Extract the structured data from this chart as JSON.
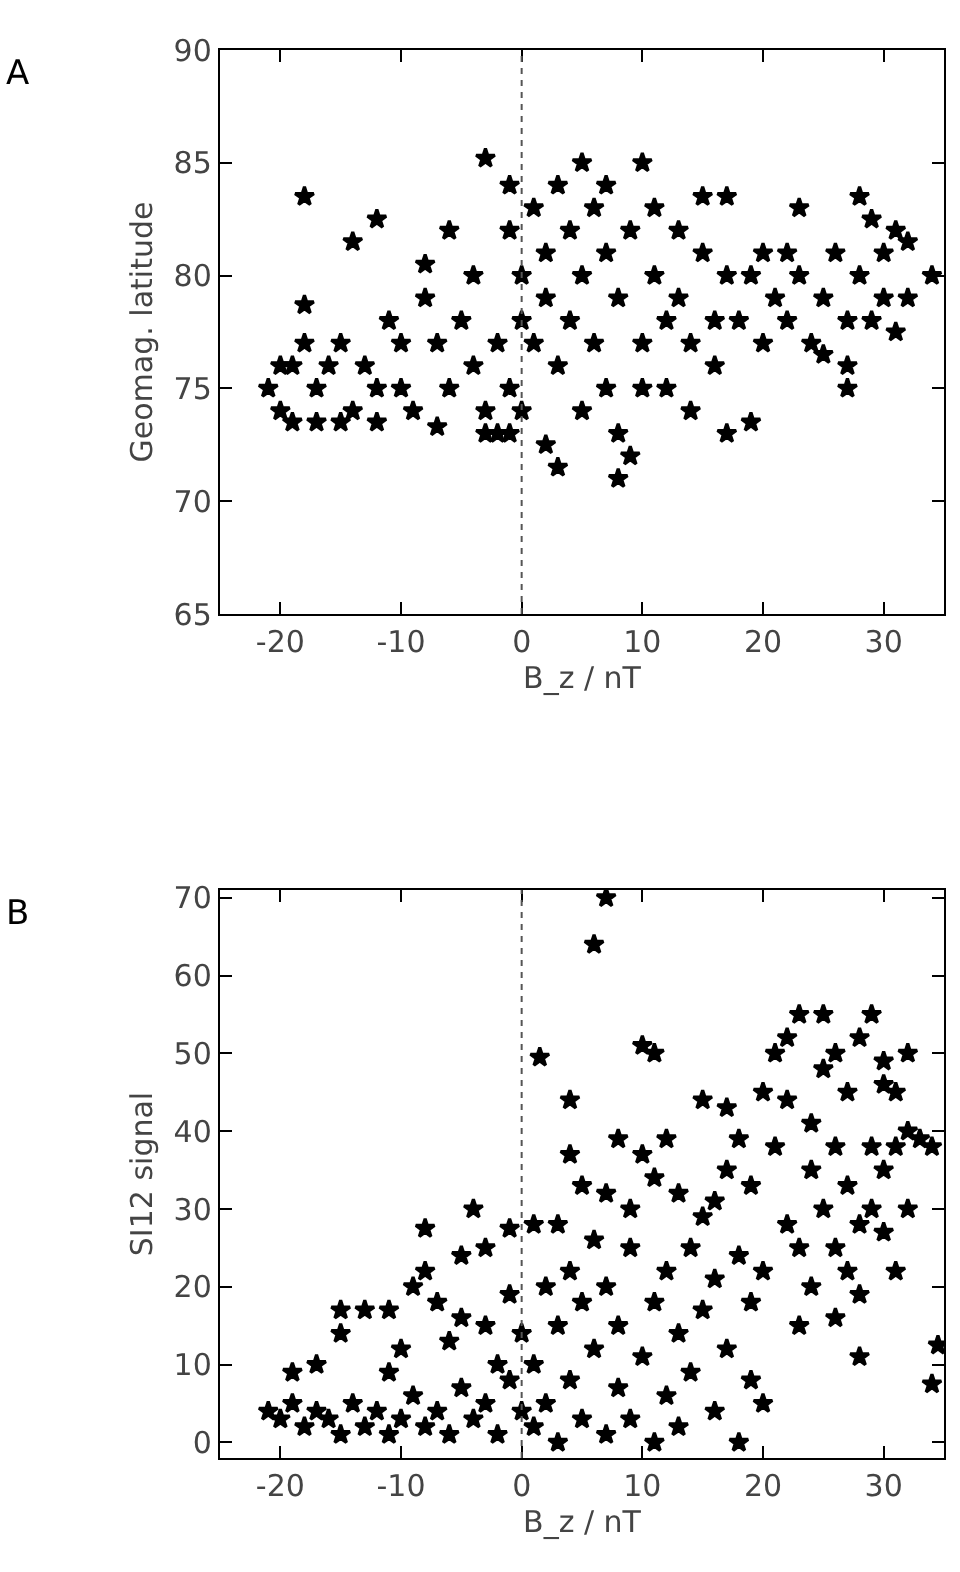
{
  "chart_data": [
    {
      "type": "scatter",
      "xlabel": "B_z / nT",
      "ylabel": "Geomag. latitude",
      "annotations": [
        "A"
      ],
      "marker": "star",
      "xlim": [
        -25,
        35
      ],
      "xticks": [
        -20,
        -10,
        0,
        10,
        20,
        30
      ],
      "ylim": [
        65,
        90
      ],
      "yticks": [
        65,
        70,
        75,
        80,
        85,
        90
      ],
      "ref_lines": [
        {
          "axis": "x",
          "value": 0,
          "line_style": "dotted"
        }
      ],
      "series": [
        {
          "color": "#000000",
          "x": [
            -21,
            -20,
            -19,
            -19,
            -18,
            -17,
            -17,
            -16,
            -15,
            -14,
            -13,
            -12,
            -12,
            -11,
            -10,
            -9,
            -8,
            -7,
            -6,
            -5,
            -4,
            -3,
            -2,
            -1,
            -18,
            -14,
            -12,
            -18,
            -8,
            -6,
            -7,
            -3,
            -3,
            -1,
            2,
            3,
            -1,
            -1,
            0,
            0,
            1,
            1,
            2,
            2,
            3,
            3,
            4,
            4,
            5,
            5,
            5,
            6,
            6,
            7,
            7,
            7,
            8,
            8,
            8,
            9,
            9,
            10,
            10,
            11,
            11,
            12,
            12,
            13,
            13,
            14,
            14,
            15,
            15,
            16,
            16,
            17,
            17,
            17,
            18,
            19,
            19,
            20,
            20,
            21,
            22,
            23,
            23,
            24,
            25,
            26,
            27,
            27,
            27,
            28,
            28,
            29,
            29,
            30,
            30,
            31,
            31,
            32,
            32,
            34,
            25,
            22,
            10,
            0,
            -2,
            -4,
            -10,
            -15,
            -20
          ],
          "values": [
            75,
            74,
            73.5,
            76,
            77,
            75,
            73.5,
            76,
            77,
            74,
            76,
            75,
            73.5,
            78,
            77,
            74,
            79,
            77,
            75,
            78,
            76,
            74,
            73,
            75,
            83.5,
            81.5,
            82.5,
            78.7,
            80.5,
            82,
            73.3,
            85.2,
            73,
            73,
            72.5,
            71.5,
            82,
            84,
            80,
            78,
            83,
            77,
            81,
            79,
            84,
            76,
            82,
            78,
            85,
            80,
            74,
            83,
            77,
            81,
            75,
            84,
            79,
            73,
            71,
            72,
            82,
            85,
            77,
            80,
            83,
            78,
            75,
            82,
            79,
            77,
            74,
            81,
            83.5,
            78,
            76,
            73,
            80,
            83.5,
            78,
            73.5,
            80,
            81,
            77,
            79,
            78,
            83,
            80,
            77,
            79,
            81,
            78,
            76,
            75,
            83.5,
            80,
            82.5,
            78,
            81,
            79,
            82,
            77.5,
            79,
            81.5,
            80,
            76.5,
            81,
            75,
            74,
            77,
            80,
            75,
            73.5,
            76
          ]
        }
      ]
    },
    {
      "type": "scatter",
      "xlabel": "B_z / nT",
      "ylabel": "SI12 signal",
      "annotations": [
        "B"
      ],
      "marker": "star",
      "xlim": [
        -25,
        35
      ],
      "xticks": [
        -20,
        -10,
        0,
        10,
        20,
        30
      ],
      "ylim": [
        -2,
        71
      ],
      "yticks": [
        0,
        10,
        20,
        30,
        40,
        50,
        60,
        70
      ],
      "ref_lines": [
        {
          "axis": "x",
          "value": 0,
          "line_style": "dotted"
        }
      ],
      "series": [
        {
          "color": "#000000",
          "x": [
            -21,
            -20,
            -19,
            -18,
            -17,
            -16,
            -15,
            -14,
            -13,
            -12,
            -11,
            -10,
            -9,
            -8,
            -7,
            -6,
            -5,
            -4,
            -3,
            -2,
            -1,
            0,
            -19,
            -17,
            -15,
            -15,
            -13,
            -11,
            -11,
            -10,
            -9,
            -8,
            -8,
            -7,
            -6,
            -5,
            -5,
            -4,
            -3,
            -3,
            -2,
            -1,
            -1,
            0,
            1,
            1,
            1,
            2,
            2,
            3,
            3,
            3,
            4,
            4,
            4,
            4,
            5,
            5,
            5,
            6,
            6,
            6,
            7,
            7,
            7,
            7,
            8,
            8,
            8,
            9,
            9,
            9,
            10,
            10,
            10,
            11,
            11,
            11,
            11,
            12,
            12,
            12,
            13,
            13,
            13,
            14,
            14,
            15,
            15,
            15,
            16,
            16,
            16,
            17,
            17,
            17,
            18,
            18,
            18,
            19,
            19,
            19,
            20,
            20,
            20,
            1.5,
            21,
            21,
            22,
            22,
            22,
            23,
            23,
            23,
            24,
            24,
            24,
            25,
            25,
            25,
            26,
            26,
            26,
            26,
            27,
            27,
            27,
            28,
            28,
            28,
            28,
            29,
            29,
            29,
            30,
            30,
            30,
            30,
            31,
            31,
            31,
            32,
            32,
            32,
            33,
            34,
            34,
            34.5
          ],
          "values": [
            4,
            3,
            5,
            2,
            4,
            3,
            1,
            5,
            2,
            4,
            1,
            3,
            6,
            2,
            4,
            1,
            7,
            3,
            5,
            1,
            8,
            4,
            9,
            10,
            17,
            14,
            17,
            9,
            17,
            12,
            20,
            22,
            27.5,
            18,
            13,
            24,
            16,
            30,
            25,
            15,
            10,
            27.5,
            19,
            14,
            2,
            10,
            28,
            20,
            5,
            15,
            28,
            0,
            8,
            22,
            44,
            37,
            3,
            18,
            33,
            12,
            26,
            64,
            70,
            1,
            20,
            32,
            7,
            15,
            39,
            25,
            3,
            30,
            11,
            37,
            51,
            0,
            18,
            50,
            34,
            6,
            22,
            39,
            14,
            2,
            32,
            25,
            9,
            17,
            44,
            29,
            4,
            21,
            31,
            12,
            35,
            43,
            0,
            24,
            39,
            8,
            18,
            33,
            5,
            22,
            45,
            49.5,
            38,
            50,
            28,
            52,
            44,
            55,
            25,
            15,
            35,
            41,
            20,
            55,
            30,
            48,
            38,
            25,
            16,
            50,
            45,
            33,
            22,
            28,
            19,
            11,
            52,
            55,
            38,
            30,
            46,
            49,
            27,
            35,
            38,
            22,
            45,
            40,
            50,
            30,
            39,
            38,
            7.5,
            12.5
          ]
        }
      ]
    }
  ]
}
